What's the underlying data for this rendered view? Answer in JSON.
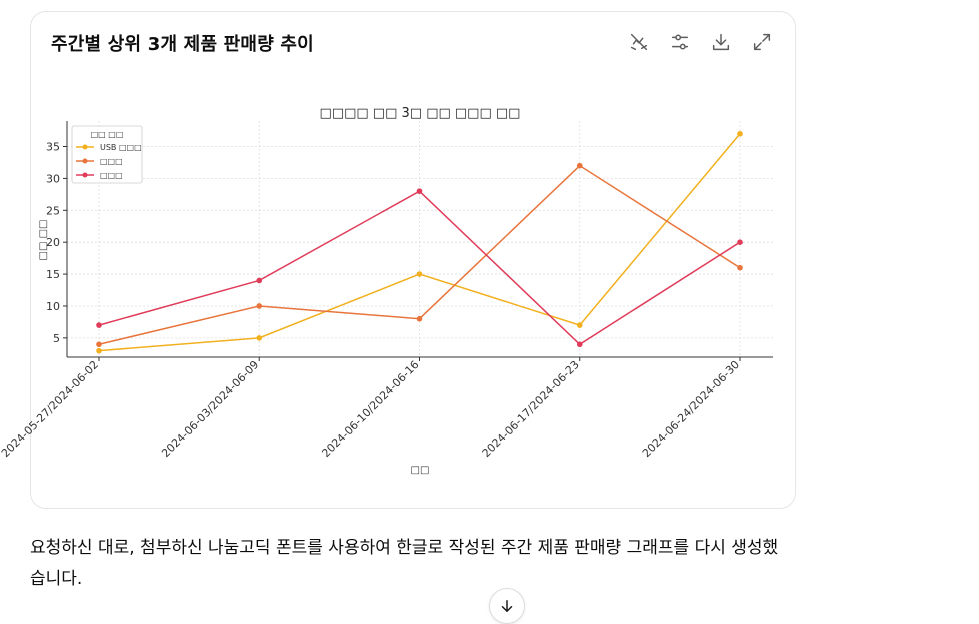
{
  "card": {
    "title": "주간별 상위 3개 제품 판매량 추이",
    "toolbar": [
      {
        "name": "interactive-off-icon"
      },
      {
        "name": "settings-sliders-icon"
      },
      {
        "name": "download-icon"
      },
      {
        "name": "expand-icon"
      }
    ]
  },
  "chart_data": {
    "type": "line",
    "title": "□□□□ □□ 3□ □□ □□□ □□",
    "xlabel": "□□",
    "ylabel": "□□ □□",
    "categories": [
      "2024-05-27/2024-06-02",
      "2024-06-03/2024-06-09",
      "2024-06-10/2024-06-16",
      "2024-06-17/2024-06-23",
      "2024-06-24/2024-06-30"
    ],
    "ylim": [
      2,
      39
    ],
    "yticks": [
      5,
      10,
      15,
      20,
      25,
      30,
      35
    ],
    "grid": true,
    "legend": {
      "title": "□□ □□",
      "placement": "top-left"
    },
    "series": [
      {
        "name": "USB □□□",
        "color": "#f2b01e",
        "values": [
          3,
          5,
          15,
          7,
          37
        ]
      },
      {
        "name": "□□□",
        "color": "#e8743b",
        "values": [
          4,
          10,
          8,
          32,
          16
        ]
      },
      {
        "name": "□□□",
        "color": "#e03c5a",
        "values": [
          7,
          14,
          28,
          4,
          20
        ]
      }
    ]
  },
  "response": {
    "line1": "요청하신 대로, 첨부하신 나눔고딕 폰트를 사용하여 한글로 작성된 주간 제품 판매량 그래프를 다시 생성했",
    "line2": "습니다."
  },
  "scroll_button": {
    "icon": "arrow-down-icon"
  }
}
